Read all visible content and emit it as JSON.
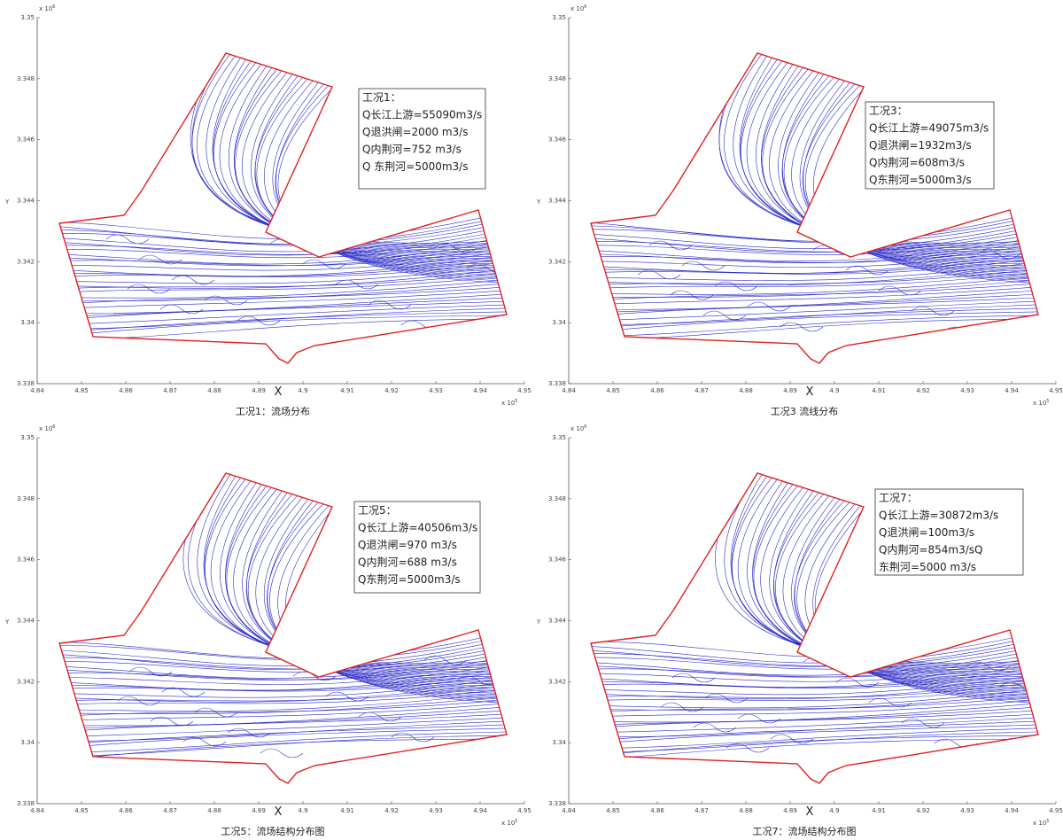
{
  "panels": [
    {
      "caption": "工况1：流场分布",
      "box": [
        "工况1：",
        "Q长江上游=55090m3/s",
        "Q退洪闸=2000 m3/s",
        "Q内荆河=752 m3/s",
        "Q 东荆河=5000m3/s"
      ],
      "x_label": "X",
      "y_label": "Y",
      "x_exponent": {
        "base": "x 10",
        "power": "5"
      },
      "y_exponent": {
        "base": "x 10",
        "power": "6"
      },
      "x_ticks": [
        "4.84",
        "4.85",
        "4.86",
        "4.87",
        "4.88",
        "4.89",
        "4.9",
        "4.91",
        "4.92",
        "4.93",
        "4.94",
        "4.95"
      ],
      "y_ticks": [
        "3.338",
        "3.34",
        "3.342",
        "3.344",
        "3.346",
        "3.348",
        "3.35"
      ]
    },
    {
      "caption": "工况3 流线分布",
      "box": [
        "工况3：",
        "Q长江上游=49075m3/s",
        "Q退洪闸=1932m3/s",
        "Q内荆河=608m3/s",
        "Q东荆河=5000m3/s"
      ],
      "x_label": "X",
      "y_label": "Y",
      "x_exponent": {
        "base": "x 10",
        "power": "5"
      },
      "y_exponent": {
        "base": "x 10",
        "power": "6"
      },
      "x_ticks": [
        "4.84",
        "4.85",
        "4.86",
        "4.87",
        "4.88",
        "4.89",
        "4.9",
        "4.91",
        "4.92",
        "4.93",
        "4.94",
        "4.95"
      ],
      "y_ticks": [
        "3.338",
        "3.34",
        "3.342",
        "3.344",
        "3.346",
        "3.348",
        "3.35"
      ]
    },
    {
      "caption": "工况5：流场结构分布图",
      "box": [
        "工况5：",
        "Q长江上游=40506m3/s",
        "Q退洪闸=970 m3/s",
        "Q内荆河=688 m3/s",
        "Q东荆河=5000m3/s"
      ],
      "x_label": "X",
      "y_label": "Y",
      "x_exponent": {
        "base": "x 10",
        "power": "5"
      },
      "y_exponent": {
        "base": "x 10",
        "power": "6"
      },
      "x_ticks": [
        "4.84",
        "4.85",
        "4.86",
        "4.87",
        "4.88",
        "4.89",
        "4.9",
        "4.91",
        "4.92",
        "4.93",
        "4.94",
        "4.95"
      ],
      "y_ticks": [
        "3.338",
        "3.34",
        "3.342",
        "3.344",
        "3.346",
        "3.348",
        "3.35"
      ]
    },
    {
      "caption": "工况7：流场结构分布图",
      "box": [
        "工况7：",
        "Q长江上游=30872m3/s",
        "Q退洪闸=100m3/s",
        "Q内荆河=854m3/sQ",
        "东荆河=5000 m3/s"
      ],
      "x_label": "X",
      "y_label": "Y",
      "x_exponent": {
        "base": "x 10",
        "power": "5"
      },
      "y_exponent": {
        "base": "x 10",
        "power": "6"
      },
      "x_ticks": [
        "4.84",
        "4.85",
        "4.86",
        "4.87",
        "4.88",
        "4.89",
        "4.9",
        "4.91",
        "4.92",
        "4.93",
        "4.94",
        "4.95"
      ],
      "y_ticks": [
        "3.338",
        "3.34",
        "3.342",
        "3.344",
        "3.346",
        "3.348",
        "3.35"
      ]
    }
  ]
}
